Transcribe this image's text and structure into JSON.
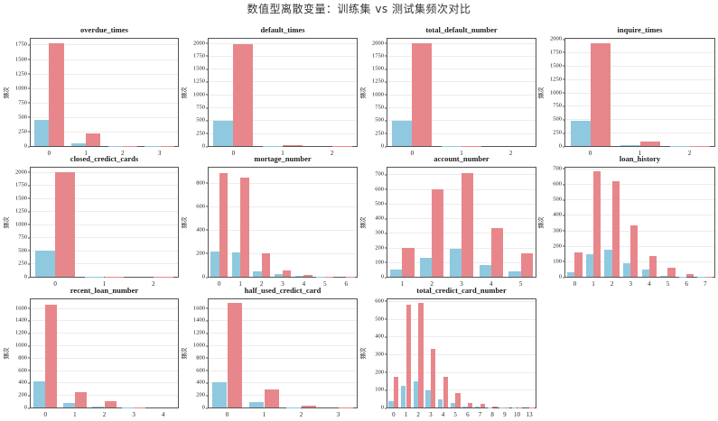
{
  "figure": {
    "suptitle": "数值型离散变量：训练集 vs 测试集频次对比",
    "ylabel": "频次",
    "colors": {
      "train": "#8fc9e0",
      "test": "#e8878b"
    }
  },
  "chart_data": [
    {
      "type": "bar",
      "title": "overdue_times",
      "xlabel": "",
      "ylabel": "频次",
      "categories": [
        "0",
        "1",
        "2",
        "3"
      ],
      "series": [
        {
          "name": "训练集",
          "values": [
            450,
            45,
            3,
            2
          ]
        },
        {
          "name": "测试集",
          "values": [
            1780,
            220,
            8,
            5
          ]
        }
      ],
      "ylim": [
        0,
        1850
      ],
      "yticks": [
        0,
        250,
        500,
        750,
        1000,
        1250,
        1500,
        1750
      ],
      "grid": true
    },
    {
      "type": "bar",
      "title": "default_times",
      "xlabel": "",
      "ylabel": "频次",
      "categories": [
        "0",
        "1",
        "2"
      ],
      "series": [
        {
          "name": "训练集",
          "values": [
            495,
            3,
            1
          ]
        },
        {
          "name": "测试集",
          "values": [
            1980,
            20,
            3
          ]
        }
      ],
      "ylim": [
        0,
        2080
      ],
      "yticks": [
        0,
        250,
        500,
        750,
        1000,
        1250,
        1500,
        1750,
        2000
      ],
      "grid": true
    },
    {
      "type": "bar",
      "title": "total_default_number",
      "xlabel": "",
      "ylabel": "频次",
      "categories": [
        "0",
        "1",
        "2"
      ],
      "series": [
        {
          "name": "训练集",
          "values": [
            498,
            2,
            0
          ]
        },
        {
          "name": "测试集",
          "values": [
            1995,
            5,
            1
          ]
        }
      ],
      "ylim": [
        0,
        2080
      ],
      "yticks": [
        0,
        250,
        500,
        750,
        1000,
        1250,
        1500,
        1750,
        2000
      ],
      "grid": true
    },
    {
      "type": "bar",
      "title": "inquire_times",
      "xlabel": "",
      "ylabel": "频次",
      "categories": [
        "0",
        "1",
        "2"
      ],
      "series": [
        {
          "name": "训练集",
          "values": [
            478,
            20,
            2
          ]
        },
        {
          "name": "测试集",
          "values": [
            1915,
            85,
            5
          ]
        }
      ],
      "ylim": [
        0,
        2000
      ],
      "yticks": [
        0,
        250,
        500,
        750,
        1000,
        1250,
        1500,
        1750,
        2000
      ],
      "grid": true
    },
    {
      "type": "bar",
      "title": "closed_credict_cards",
      "xlabel": "",
      "ylabel": "频次",
      "categories": [
        "0",
        "1",
        "2"
      ],
      "series": [
        {
          "name": "训练集",
          "values": [
            495,
            3,
            1
          ]
        },
        {
          "name": "测试集",
          "values": [
            1995,
            5,
            2
          ]
        }
      ],
      "ylim": [
        0,
        2080
      ],
      "yticks": [
        0,
        250,
        500,
        750,
        1000,
        1250,
        1500,
        1750,
        2000
      ],
      "grid": true
    },
    {
      "type": "bar",
      "title": "mortage_number",
      "xlabel": "",
      "ylabel": "频次",
      "categories": [
        "0",
        "1",
        "2",
        "3",
        "4",
        "5",
        "6"
      ],
      "series": [
        {
          "name": "训练集",
          "values": [
            215,
            210,
            50,
            20,
            5,
            1,
            0
          ]
        },
        {
          "name": "测试集",
          "values": [
            885,
            845,
            200,
            55,
            12,
            3,
            1
          ]
        }
      ],
      "ylim": [
        0,
        930
      ],
      "yticks": [
        0,
        200,
        400,
        600,
        800
      ],
      "grid": true
    },
    {
      "type": "bar",
      "title": "account_number",
      "xlabel": "",
      "ylabel": "频次",
      "categories": [
        "1",
        "2",
        "3",
        "4",
        "5"
      ],
      "series": [
        {
          "name": "训练集",
          "values": [
            48,
            130,
            190,
            82,
            40
          ]
        },
        {
          "name": "测试集",
          "values": [
            198,
            600,
            710,
            335,
            158
          ]
        }
      ],
      "ylim": [
        0,
        745
      ],
      "yticks": [
        0,
        100,
        200,
        300,
        400,
        500,
        600,
        700
      ],
      "grid": true
    },
    {
      "type": "bar",
      "title": "loan_history",
      "xlabel": "",
      "ylabel": "频次",
      "categories": [
        "0",
        "1",
        "2",
        "3",
        "4",
        "5",
        "6",
        "7"
      ],
      "series": [
        {
          "name": "训练集",
          "values": [
            32,
            145,
            175,
            88,
            45,
            5,
            3,
            2
          ]
        },
        {
          "name": "测试集",
          "values": [
            160,
            680,
            620,
            335,
            135,
            58,
            18,
            3
          ]
        }
      ],
      "ylim": [
        0,
        705
      ],
      "yticks": [
        0,
        100,
        200,
        300,
        400,
        500,
        600,
        700
      ],
      "grid": true
    },
    {
      "type": "bar",
      "title": "recent_loan_number",
      "xlabel": "",
      "ylabel": "频次",
      "categories": [
        "0",
        "1",
        "2",
        "3",
        "4"
      ],
      "series": [
        {
          "name": "训练集",
          "values": [
            415,
            75,
            10,
            2,
            0
          ]
        },
        {
          "name": "测试集",
          "values": [
            1655,
            245,
            95,
            5,
            1
          ]
        }
      ],
      "ylim": [
        0,
        1740
      ],
      "yticks": [
        0,
        200,
        400,
        600,
        800,
        1000,
        1200,
        1400,
        1600
      ],
      "grid": true
    },
    {
      "type": "bar",
      "title": "half_used_credict_card",
      "xlabel": "",
      "ylabel": "频次",
      "categories": [
        "0",
        "1",
        "2",
        "3"
      ],
      "series": [
        {
          "name": "训练集",
          "values": [
            410,
            80,
            5,
            1
          ]
        },
        {
          "name": "测试集",
          "values": [
            1675,
            285,
            35,
            2
          ]
        }
      ],
      "ylim": [
        0,
        1740
      ],
      "yticks": [
        0,
        200,
        400,
        600,
        800,
        1000,
        1200,
        1400,
        1600
      ],
      "grid": true
    },
    {
      "type": "bar",
      "title": "total_credict_card_number",
      "xlabel": "",
      "ylabel": "频次",
      "categories": [
        "0",
        "1",
        "2",
        "3",
        "4",
        "5",
        "6",
        "7",
        "8",
        "9",
        "10",
        "13"
      ],
      "series": [
        {
          "name": "训练集",
          "values": [
            35,
            120,
            150,
            95,
            45,
            25,
            5,
            3,
            2,
            1,
            1,
            0
          ]
        },
        {
          "name": "测试集",
          "values": [
            175,
            580,
            590,
            330,
            175,
            82,
            25,
            20,
            6,
            2,
            1,
            1
          ]
        }
      ],
      "ylim": [
        0,
        610
      ],
      "yticks": [
        0,
        100,
        200,
        300,
        400,
        500,
        600
      ],
      "grid": true
    }
  ]
}
